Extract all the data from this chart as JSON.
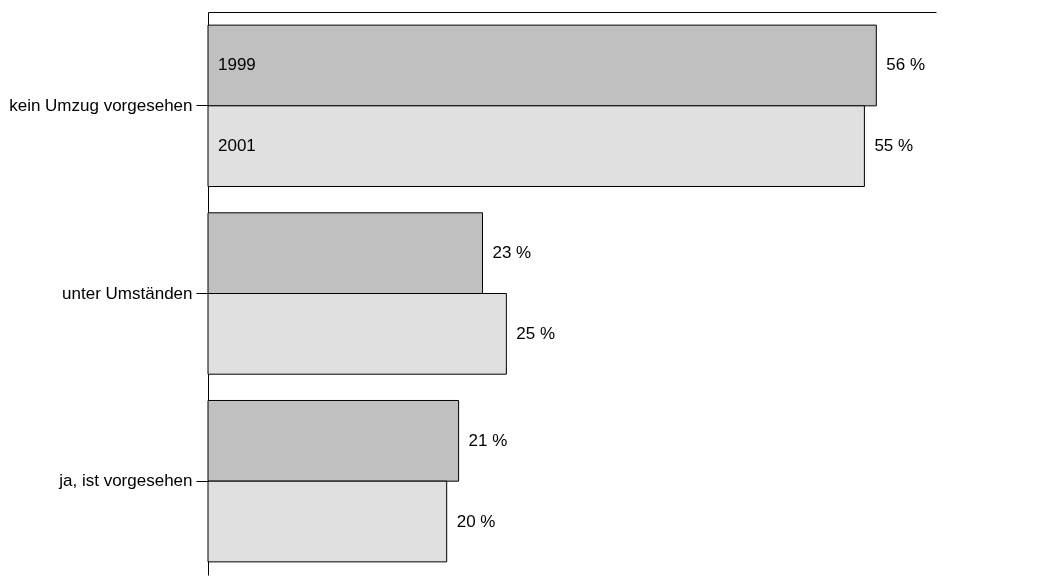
{
  "chart_data": {
    "type": "bar",
    "orientation": "horizontal",
    "categories": [
      "kein Umzug vorgesehen",
      "unter Umständen",
      "ja, ist vorgesehen"
    ],
    "series": [
      {
        "name": "1999",
        "color": "#c0c0c0",
        "values": [
          56,
          23,
          21
        ],
        "value_labels": [
          "56 %",
          "23 %",
          "21 %"
        ]
      },
      {
        "name": "2001",
        "color": "#e0e0e0",
        "values": [
          55,
          25,
          20
        ],
        "value_labels": [
          "55 %",
          "25 %",
          "20 %"
        ]
      }
    ],
    "xlim": [
      0,
      61
    ],
    "legend": false
  }
}
